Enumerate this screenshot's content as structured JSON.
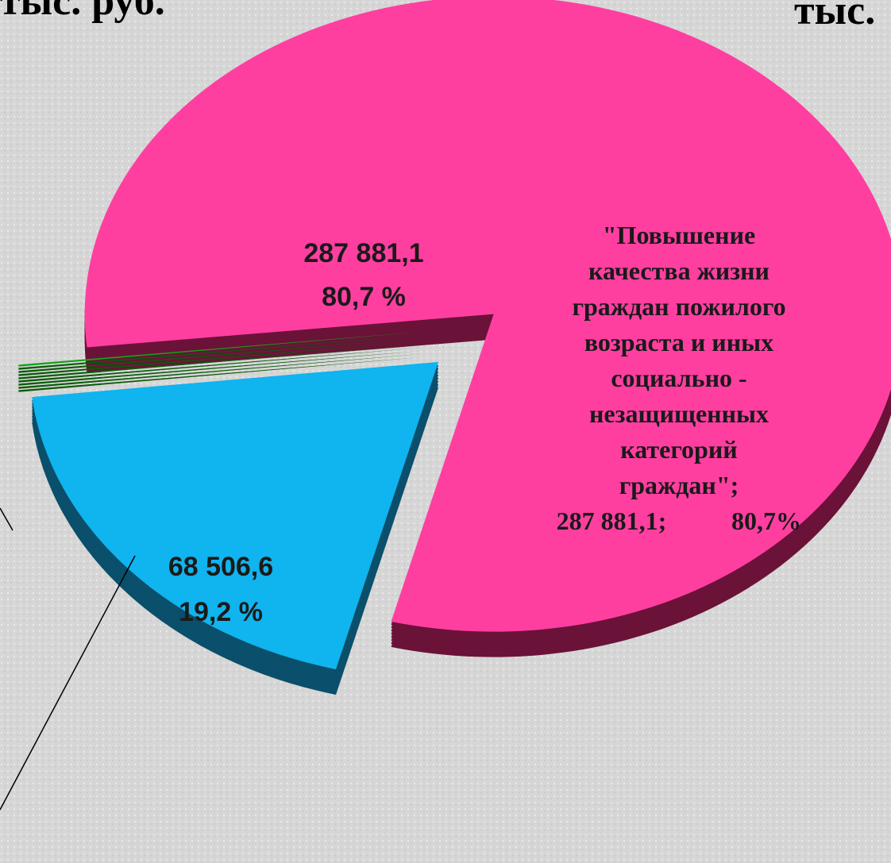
{
  "chart_data": {
    "type": "pie",
    "title": "тыс. руб.",
    "title_right": "тыс.",
    "categories": [
      "\"Повышение качества жизни граждан пожилого возраста и иных социально - незащищенных категорий граждан\";",
      null,
      null
    ],
    "values": [
      287881.1,
      68506.6,
      341.3
    ],
    "value_labels": [
      "287 881,1",
      "68 506,6",
      null
    ],
    "percent_labels": [
      "80,7 %",
      "19,2 %",
      null
    ],
    "callout_values": [
      "287 881,1;",
      "80,7%"
    ],
    "colors": [
      "#ff3fa0",
      "#10b4ee",
      "#14a014"
    ],
    "side_colors": [
      "#6b1238",
      "#0a4f6b",
      "#0a5a0a"
    ]
  }
}
